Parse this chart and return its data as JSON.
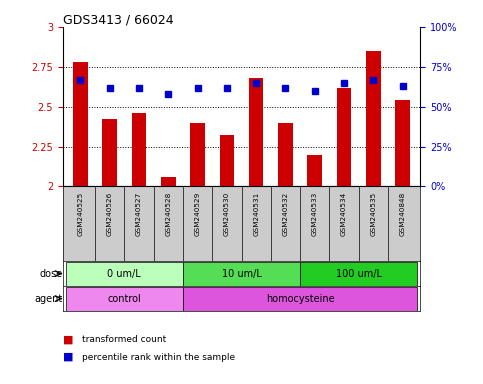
{
  "title": "GDS3413 / 66024",
  "samples": [
    "GSM240525",
    "GSM240526",
    "GSM240527",
    "GSM240528",
    "GSM240529",
    "GSM240530",
    "GSM240531",
    "GSM240532",
    "GSM240533",
    "GSM240534",
    "GSM240535",
    "GSM240848"
  ],
  "transformed_counts": [
    2.78,
    2.42,
    2.46,
    2.06,
    2.4,
    2.32,
    2.68,
    2.4,
    2.2,
    2.62,
    2.85,
    2.54
  ],
  "percentile_ranks": [
    67,
    62,
    62,
    58,
    62,
    62,
    65,
    62,
    60,
    65,
    67,
    63
  ],
  "ylim_left": [
    2.0,
    3.0
  ],
  "ylim_right": [
    0,
    100
  ],
  "yticks_left": [
    2.0,
    2.25,
    2.5,
    2.75,
    3.0
  ],
  "yticks_right": [
    0,
    25,
    50,
    75,
    100
  ],
  "ytick_labels_left": [
    "2",
    "2.25",
    "2.5",
    "2.75",
    "3"
  ],
  "ytick_labels_right": [
    "0%",
    "25%",
    "50%",
    "75%",
    "100%"
  ],
  "bar_color": "#cc0000",
  "dot_color": "#0000cc",
  "dose_groups": [
    {
      "label": "0 um/L",
      "start": 0,
      "end": 4,
      "color": "#bbffbb"
    },
    {
      "label": "10 um/L",
      "start": 4,
      "end": 8,
      "color": "#55dd55"
    },
    {
      "label": "100 um/L",
      "start": 8,
      "end": 12,
      "color": "#22cc22"
    }
  ],
  "agent_groups": [
    {
      "label": "control",
      "start": 0,
      "end": 4,
      "color": "#ee88ee"
    },
    {
      "label": "homocysteine",
      "start": 4,
      "end": 12,
      "color": "#dd55dd"
    }
  ],
  "dose_label": "dose",
  "agent_label": "agent",
  "legend_bar_label": "transformed count",
  "legend_dot_label": "percentile rank within the sample",
  "bar_width": 0.5,
  "bg_color": "#ffffff",
  "tick_area_bg": "#cccccc"
}
